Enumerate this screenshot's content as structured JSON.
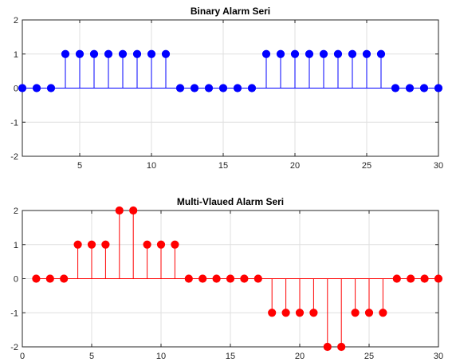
{
  "chart_data": [
    {
      "type": "stem",
      "title": "Binary Alarm Seri",
      "xlabel": "",
      "ylabel": "",
      "xlim": [
        1,
        30
      ],
      "ylim": [
        -2,
        2
      ],
      "xticks": [
        5,
        10,
        15,
        20,
        25,
        30
      ],
      "yticks": [
        -2,
        -1,
        0,
        1,
        2
      ],
      "grid": true,
      "color": "#0000ff",
      "x": [
        1,
        2,
        3,
        4,
        5,
        6,
        7,
        8,
        9,
        10,
        11,
        12,
        13,
        14,
        15,
        16,
        17,
        18,
        19,
        20,
        21,
        22,
        23,
        24,
        25,
        26,
        27,
        28,
        29,
        30
      ],
      "values": [
        0,
        0,
        0,
        1,
        1,
        1,
        1,
        1,
        1,
        1,
        1,
        0,
        0,
        0,
        0,
        0,
        0,
        1,
        1,
        1,
        1,
        1,
        1,
        1,
        1,
        1,
        0,
        0,
        0,
        0
      ]
    },
    {
      "type": "stem",
      "title": "Multi-Vlaued Alarm Seri",
      "xlabel": "",
      "ylabel": "",
      "xlim": [
        0,
        30
      ],
      "ylim": [
        -2,
        2
      ],
      "xticks": [
        0,
        5,
        10,
        15,
        20,
        25,
        30
      ],
      "yticks": [
        -2,
        -1,
        0,
        1,
        2
      ],
      "grid": true,
      "color": "#ff0000",
      "x": [
        1,
        2,
        3,
        4,
        5,
        6,
        7,
        8,
        9,
        10,
        11,
        12,
        13,
        14,
        15,
        16,
        17,
        18,
        19,
        20,
        21,
        22,
        23,
        24,
        25,
        26,
        27,
        28,
        29,
        30
      ],
      "values": [
        0,
        0,
        0,
        1,
        1,
        1,
        2,
        2,
        1,
        1,
        1,
        0,
        0,
        0,
        0,
        0,
        0,
        -1,
        -1,
        -1,
        -1,
        -2,
        -2,
        -1,
        -1,
        -1,
        0,
        0,
        0,
        0
      ]
    }
  ]
}
